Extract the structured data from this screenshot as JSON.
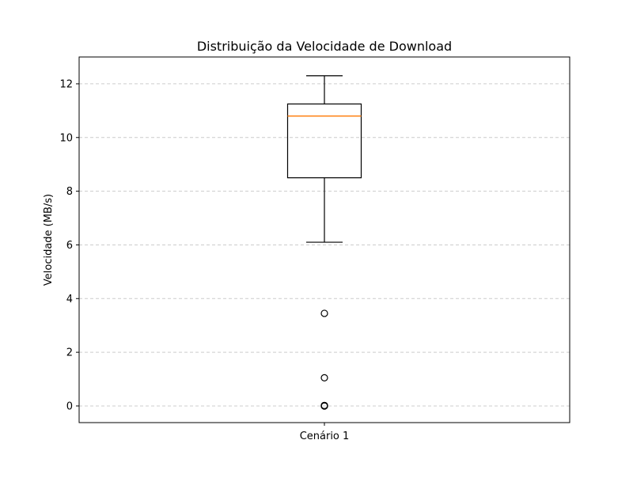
{
  "chart_data": {
    "type": "box",
    "title": "Distribuição da Velocidade de Download",
    "xlabel": "",
    "ylabel": "Velocidade (MB/s)",
    "categories": [
      "Cenário 1"
    ],
    "ylim": [
      -0.62,
      13.0
    ],
    "yticks": [
      0,
      2,
      4,
      6,
      8,
      10,
      12
    ],
    "grid": {
      "axis": "y",
      "style": "dashed"
    },
    "boxes": [
      {
        "category": "Cenário 1",
        "whisker_low": 6.1,
        "q1": 8.5,
        "median": 10.8,
        "q3": 11.25,
        "whisker_high": 12.3,
        "outliers": [
          3.45,
          1.05,
          0.02,
          0.01,
          0.0,
          0.0
        ]
      }
    ],
    "colors": {
      "box": "#000000",
      "median": "#ff7f0e",
      "grid": "#cccccc"
    }
  }
}
